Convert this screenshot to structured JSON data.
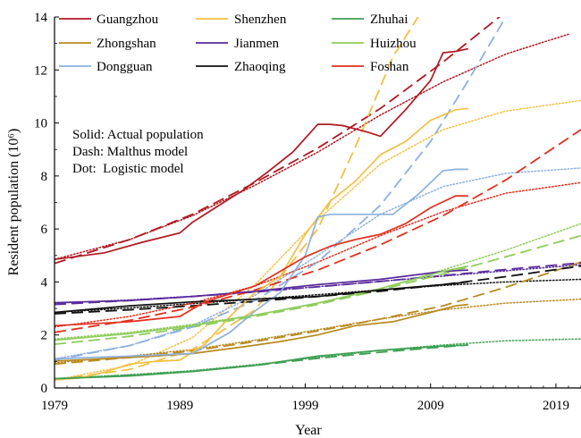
{
  "chart_data": {
    "type": "line",
    "xlabel": "Year",
    "ylabel": "Resident population (10⁶)",
    "xlim": [
      1979,
      2021
    ],
    "ylim": [
      0,
      14
    ],
    "x_ticks": [
      1979,
      1989,
      1999,
      2009,
      2019
    ],
    "y_ticks": [
      0,
      2,
      4,
      6,
      8,
      10,
      12,
      14
    ],
    "grid": false,
    "legend_position": "top-left",
    "annotations": [
      "Solid: Actual population",
      "Dash: Malthus model",
      "Dot:  Logistic model"
    ],
    "series": [
      {
        "name": "Guangzhou",
        "color": "#b01820",
        "actual": {
          "x": [
            1979,
            1983,
            1986,
            1989,
            1990,
            1992,
            1994,
            1996,
            1998,
            2000,
            2001,
            2002,
            2004,
            2005,
            2007,
            2009,
            2010,
            2011,
            2012
          ],
          "y": [
            4.85,
            5.1,
            5.5,
            5.85,
            6.25,
            6.85,
            7.45,
            8.15,
            8.9,
            9.95,
            9.95,
            9.9,
            9.65,
            9.5,
            10.5,
            11.6,
            12.65,
            12.7,
            12.8
          ]
        },
        "malthus": {
          "x": [
            1979,
            1985,
            1990,
            1995,
            2000,
            2005,
            2010,
            2015
          ],
          "y": [
            4.7,
            5.6,
            6.55,
            7.75,
            9.05,
            10.55,
            12.3,
            14.2
          ]
        },
        "logistic": {
          "x": [
            1979,
            1985,
            1990,
            1995,
            2000,
            2005,
            2010,
            2015,
            2020
          ],
          "y": [
            4.85,
            5.6,
            6.5,
            7.65,
            8.9,
            10.3,
            11.55,
            12.6,
            13.35
          ]
        }
      },
      {
        "name": "Shenzhen",
        "color": "#f2c042",
        "actual": {
          "x": [
            1979,
            1981,
            1983,
            1985,
            1987,
            1989,
            1991,
            1993,
            1995,
            1997,
            1999,
            2001,
            2003,
            2005,
            2007,
            2009,
            2011,
            2012
          ],
          "y": [
            0.31,
            0.37,
            0.6,
            0.9,
            1.0,
            1.05,
            1.65,
            2.7,
            3.6,
            4.2,
            5.8,
            7.05,
            7.8,
            8.8,
            9.3,
            10.1,
            10.5,
            10.55
          ]
        },
        "malthus": {
          "x": [
            1979,
            1985,
            1990,
            1995,
            2000,
            2003,
            2006,
            2008,
            2010,
            2011.5
          ],
          "y": [
            0.3,
            0.7,
            1.45,
            2.95,
            6.0,
            9.1,
            12.5,
            14.0,
            17.0,
            20.0
          ]
        },
        "logistic": {
          "x": [
            1979,
            1985,
            1990,
            1995,
            2000,
            2005,
            2010,
            2015,
            2021
          ],
          "y": [
            0.3,
            0.85,
            1.9,
            3.9,
            6.35,
            8.45,
            9.75,
            10.45,
            10.85
          ]
        }
      },
      {
        "name": "Zhuhai",
        "color": "#3fa052",
        "actual": {
          "x": [
            1979,
            1985,
            1990,
            1995,
            2000,
            2005,
            2010,
            2012
          ],
          "y": [
            0.35,
            0.45,
            0.62,
            0.85,
            1.2,
            1.42,
            1.58,
            1.62
          ]
        },
        "malthus": {
          "x": [
            1979,
            1985,
            1990,
            1995,
            2000,
            2005,
            2010,
            2012
          ],
          "y": [
            0.35,
            0.48,
            0.63,
            0.85,
            1.12,
            1.35,
            1.55,
            1.62
          ]
        },
        "logistic": {
          "x": [
            1979,
            1985,
            1990,
            1995,
            2000,
            2005,
            2010,
            2015,
            2021
          ],
          "y": [
            0.35,
            0.5,
            0.65,
            0.88,
            1.15,
            1.42,
            1.62,
            1.78,
            1.85
          ]
        }
      },
      {
        "name": "Zhongshan",
        "color": "#b8891e",
        "actual": {
          "x": [
            1979,
            1983,
            1987,
            1990,
            1994,
            1997,
            2000,
            2003,
            2006,
            2009,
            2011,
            2012
          ],
          "y": [
            1.02,
            1.1,
            1.2,
            1.3,
            1.55,
            1.75,
            2.0,
            2.35,
            2.5,
            2.85,
            3.1,
            3.15
          ]
        },
        "malthus": {
          "x": [
            1979,
            1985,
            1990,
            1995,
            2000,
            2005,
            2010,
            2015,
            2021
          ],
          "y": [
            0.9,
            1.15,
            1.4,
            1.75,
            2.15,
            2.6,
            3.1,
            3.8,
            4.75
          ]
        },
        "logistic": {
          "x": [
            1979,
            1985,
            1990,
            1995,
            2000,
            2005,
            2010,
            2015,
            2021
          ],
          "y": [
            0.95,
            1.2,
            1.45,
            1.8,
            2.2,
            2.6,
            2.95,
            3.2,
            3.35
          ]
        }
      },
      {
        "name": "Jianmen",
        "color": "#5a2a9c",
        "actual": {
          "x": [
            1979,
            1985,
            1990,
            1995,
            2000,
            2005,
            2010,
            2012
          ],
          "y": [
            3.22,
            3.3,
            3.45,
            3.65,
            3.9,
            4.1,
            4.4,
            4.45
          ]
        },
        "malthus": {
          "x": [
            1979,
            1985,
            1990,
            1995,
            2000,
            2005,
            2010,
            2015,
            2021
          ],
          "y": [
            3.15,
            3.3,
            3.45,
            3.62,
            3.82,
            4.02,
            4.24,
            4.47,
            4.72
          ]
        },
        "logistic": {
          "x": [
            1979,
            1985,
            1990,
            1995,
            2000,
            2005,
            2010,
            2015,
            2021
          ],
          "y": [
            3.2,
            3.32,
            3.46,
            3.63,
            3.82,
            4.02,
            4.22,
            4.42,
            4.65
          ]
        }
      },
      {
        "name": "Huizhou",
        "color": "#8fcc5a",
        "actual": {
          "x": [
            1979,
            1985,
            1990,
            1995,
            2000,
            2005,
            2010,
            2012
          ],
          "y": [
            1.8,
            2.05,
            2.35,
            2.75,
            3.2,
            3.75,
            4.4,
            4.6
          ]
        },
        "malthus": {
          "x": [
            1979,
            1985,
            1990,
            1995,
            2000,
            2005,
            2010,
            2015,
            2021
          ],
          "y": [
            1.65,
            1.95,
            2.3,
            2.7,
            3.15,
            3.7,
            4.3,
            4.95,
            5.75
          ]
        },
        "logistic": {
          "x": [
            1979,
            1985,
            1990,
            1995,
            2000,
            2005,
            2010,
            2015,
            2021
          ],
          "y": [
            1.85,
            2.1,
            2.4,
            2.75,
            3.2,
            3.75,
            4.45,
            5.2,
            6.2
          ]
        }
      },
      {
        "name": "Dongguan",
        "color": "#8db0e0",
        "actual": {
          "x": [
            1979,
            1985,
            1990,
            1993,
            1995,
            1997,
            1999,
            2000,
            2001,
            2003,
            2006,
            2008,
            2010,
            2011,
            2012
          ],
          "y": [
            1.1,
            1.2,
            1.3,
            2.1,
            2.9,
            3.6,
            5.0,
            6.45,
            6.55,
            6.55,
            6.55,
            7.3,
            8.2,
            8.25,
            8.25
          ]
        },
        "malthus": {
          "x": [
            1979,
            1985,
            1990,
            1995,
            2000,
            2005,
            2009,
            2012,
            2015,
            2017
          ],
          "y": [
            1.05,
            1.6,
            2.3,
            3.3,
            4.75,
            6.9,
            9.3,
            11.6,
            14.0,
            16.0
          ]
        },
        "logistic": {
          "x": [
            1979,
            1985,
            1990,
            1995,
            2000,
            2005,
            2010,
            2015,
            2021
          ],
          "y": [
            1.1,
            1.6,
            2.35,
            3.5,
            5.0,
            6.55,
            7.6,
            8.1,
            8.3
          ]
        }
      },
      {
        "name": "Zhaoqing",
        "color": "#101010",
        "actual": {
          "x": [
            1979,
            1985,
            1990,
            1995,
            2000,
            2005,
            2010,
            2012
          ],
          "y": [
            2.85,
            3.1,
            3.25,
            3.35,
            3.45,
            3.7,
            3.9,
            4.0
          ]
        },
        "malthus": {
          "x": [
            1979,
            1985,
            1990,
            1995,
            2000,
            2005,
            2010,
            2015,
            2021
          ],
          "y": [
            2.8,
            2.95,
            3.1,
            3.27,
            3.45,
            3.65,
            3.9,
            4.2,
            4.6
          ]
        },
        "logistic": {
          "x": [
            1979,
            1985,
            1990,
            1995,
            2000,
            2005,
            2010,
            2015,
            2021
          ],
          "y": [
            2.85,
            3.02,
            3.18,
            3.35,
            3.52,
            3.7,
            3.87,
            4.0,
            4.1
          ]
        }
      },
      {
        "name": "Foshan",
        "color": "#e0301e",
        "actual": {
          "x": [
            1979,
            1985,
            1989,
            1991,
            1995,
            1997,
            1999,
            2001,
            2003,
            2005,
            2007,
            2009,
            2011,
            2012
          ],
          "y": [
            2.35,
            2.5,
            2.7,
            3.25,
            3.85,
            4.4,
            4.95,
            5.35,
            5.6,
            5.8,
            6.2,
            6.8,
            7.25,
            7.25
          ]
        },
        "malthus": {
          "x": [
            1979,
            1985,
            1990,
            1995,
            2000,
            2005,
            2010,
            2015,
            2021
          ],
          "y": [
            2.1,
            2.55,
            3.05,
            3.7,
            4.45,
            5.4,
            6.5,
            7.85,
            9.75
          ]
        },
        "logistic": {
          "x": [
            1979,
            1985,
            1990,
            1995,
            2000,
            2005,
            2010,
            2015,
            2021
          ],
          "y": [
            2.3,
            2.7,
            3.2,
            3.85,
            4.75,
            5.75,
            6.65,
            7.35,
            7.75
          ]
        }
      }
    ]
  }
}
